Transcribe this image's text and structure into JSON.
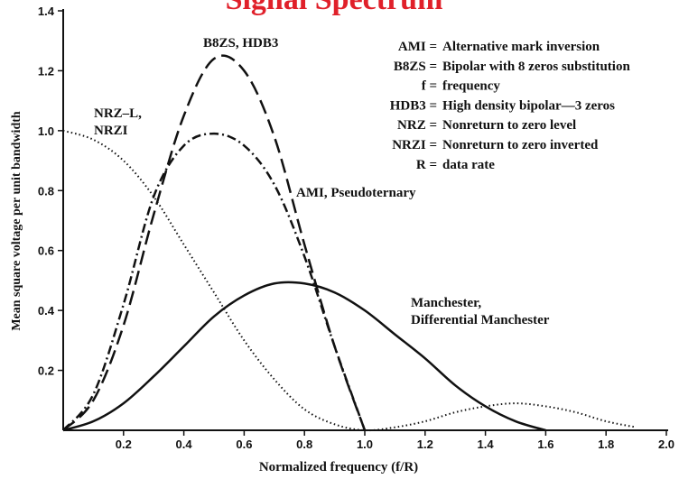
{
  "chart_data": {
    "type": "line",
    "title": "Signal Spectrum",
    "xlabel": "Normalized frequency (f/R)",
    "ylabel": "Mean square voltage per unit bandwidth",
    "xlim": [
      0,
      2.0
    ],
    "ylim": [
      0,
      1.4
    ],
    "xticks": [
      0.2,
      0.4,
      0.6,
      0.8,
      {
        "value": 1,
        "label": "1.0"
      },
      1.2,
      1.4,
      1.6,
      1.8,
      {
        "value": 2,
        "label": "2.0"
      }
    ],
    "yticks": [
      0.2,
      0.4,
      0.6,
      0.8,
      {
        "value": 1,
        "label": "1.0"
      },
      1.2,
      1.4
    ],
    "series": [
      {
        "name": [
          "NRZ–L,",
          "NRZI"
        ],
        "color": "#111111",
        "dash": "dotted",
        "x": [
          0,
          0.1,
          0.2,
          0.3,
          0.4,
          0.5,
          0.6,
          0.7,
          0.8,
          0.9,
          1.0,
          1.1,
          1.2,
          1.3,
          1.4,
          1.5,
          1.6,
          1.7,
          1.8,
          1.9
        ],
        "values": [
          1.0,
          0.97,
          0.9,
          0.78,
          0.62,
          0.46,
          0.3,
          0.17,
          0.07,
          0.02,
          0,
          0.01,
          0.03,
          0.06,
          0.08,
          0.09,
          0.08,
          0.06,
          0.03,
          0.01
        ]
      },
      {
        "name": [
          "B8ZS, HDB3"
        ],
        "color": "#111111",
        "dash": "dashed",
        "x": [
          0,
          0.1,
          0.2,
          0.3,
          0.4,
          0.5,
          0.6,
          0.7,
          0.8,
          0.9,
          1.0
        ],
        "values": [
          0,
          0.1,
          0.35,
          0.72,
          1.05,
          1.24,
          1.2,
          0.98,
          0.62,
          0.28,
          0
        ]
      },
      {
        "name": [
          "AMI, Pseudoternary"
        ],
        "color": "#111111",
        "dash": "dashdot",
        "x": [
          0,
          0.1,
          0.2,
          0.3,
          0.4,
          0.5,
          0.6,
          0.7,
          0.8,
          0.9,
          1.0
        ],
        "values": [
          0,
          0.12,
          0.42,
          0.78,
          0.95,
          0.99,
          0.95,
          0.82,
          0.58,
          0.28,
          0
        ]
      },
      {
        "name": [
          "Manchester,",
          "Differential Manchester"
        ],
        "color": "#111111",
        "dash": "solid",
        "x": [
          0,
          0.1,
          0.2,
          0.3,
          0.4,
          0.5,
          0.6,
          0.7,
          0.8,
          0.9,
          1.0,
          1.1,
          1.2,
          1.3,
          1.4,
          1.5,
          1.6
        ],
        "values": [
          0,
          0.03,
          0.09,
          0.18,
          0.28,
          0.38,
          0.45,
          0.49,
          0.49,
          0.46,
          0.4,
          0.32,
          0.24,
          0.15,
          0.08,
          0.03,
          0
        ]
      }
    ],
    "legend": [
      {
        "key": "AMI =",
        "text": "Alternative mark inversion"
      },
      {
        "key": "B8ZS =",
        "text": "Bipolar with 8 zeros substitution"
      },
      {
        "key": "f =",
        "text": "frequency"
      },
      {
        "key": "HDB3 =",
        "text": "High density bipolar—3 zeros"
      },
      {
        "key": "NRZ =",
        "text": "Nonreturn to zero level"
      },
      {
        "key": "NRZI =",
        "text": "Nonreturn to zero inverted"
      },
      {
        "key": "R =",
        "text": "data rate"
      }
    ]
  }
}
